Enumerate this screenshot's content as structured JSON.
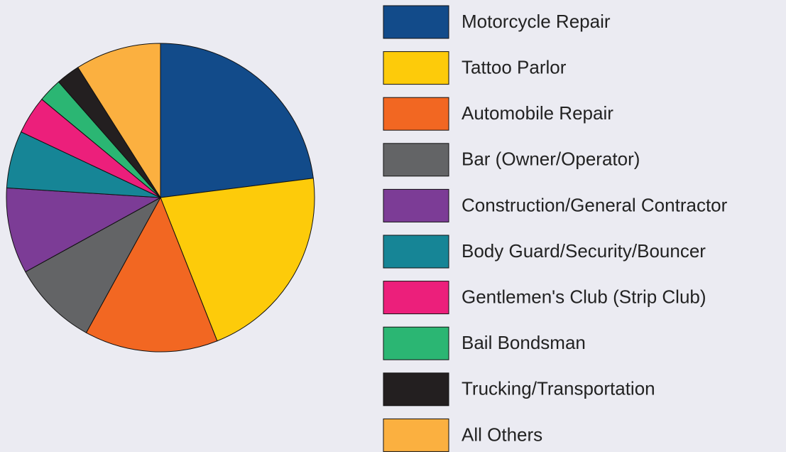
{
  "chart_data": {
    "type": "pie",
    "categories": [
      "Motorcycle Repair",
      "Tattoo Parlor",
      "Automobile Repair",
      "Bar (Owner/Operator)",
      "Construction/General Contractor",
      "Body Guard/Security/Bouncer",
      "Gentlemen's Club (Strip Club)",
      "Bail Bondsman",
      "Trucking/Transportation",
      "All Others"
    ],
    "values": [
      23,
      21,
      14,
      9,
      9,
      6,
      4,
      2.5,
      2.5,
      9
    ],
    "colors": [
      "#124b8a",
      "#fdcb0a",
      "#f26722",
      "#636466",
      "#7c3c96",
      "#168596",
      "#ec1f7b",
      "#2bb673",
      "#231f20",
      "#fbb040"
    ]
  }
}
